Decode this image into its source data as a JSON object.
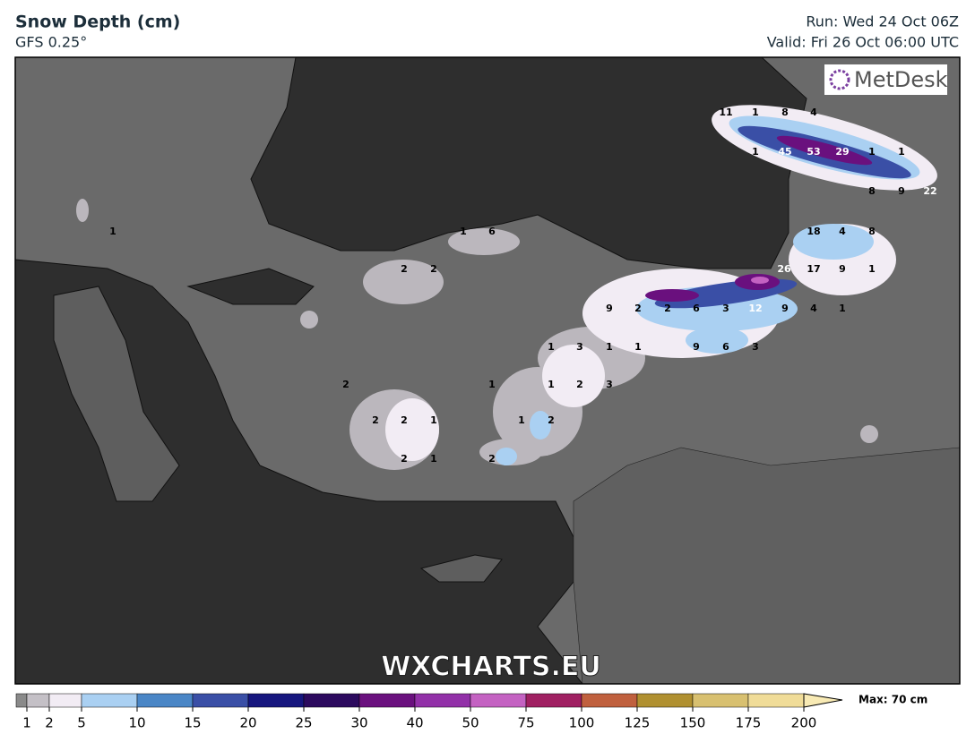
{
  "header": {
    "title": "Snow Depth (cm)",
    "model": "GFS 0.25°",
    "run": "Run: Wed 24 Oct 06Z",
    "valid": "Valid: Fri 26 Oct 06:00 UTC"
  },
  "logo": "MetDesk",
  "watermark": "WXCHARTS.EU",
  "map_labels": [
    11,
    1,
    8,
    4,
    1,
    45,
    53,
    29,
    1,
    1,
    8,
    9,
    22,
    1,
    1,
    6,
    18,
    4,
    8,
    2,
    2,
    26,
    17,
    9,
    1,
    9,
    2,
    2,
    6,
    3,
    12,
    9,
    4,
    1,
    1,
    3,
    1,
    1,
    9,
    6,
    3,
    2,
    1,
    1,
    2,
    3,
    2,
    2,
    1,
    1,
    2,
    2,
    1,
    2
  ],
  "colorbar": {
    "ticks": [
      1,
      2,
      5,
      10,
      15,
      20,
      25,
      30,
      40,
      50,
      75,
      100,
      125,
      150,
      175,
      200
    ],
    "colors": [
      "#8a8a8a",
      "#c4c0c6",
      "#f2ecf4",
      "#aad0f2",
      "#4a86c6",
      "#3a4fa6",
      "#16167e",
      "#2c0a5e",
      "#6a107e",
      "#9230a8",
      "#c462c2",
      "#a02062",
      "#c0603e",
      "#b09030",
      "#d8c070",
      "#f0dc98",
      "#f8eab4"
    ],
    "max": "Max: 70 cm"
  }
}
